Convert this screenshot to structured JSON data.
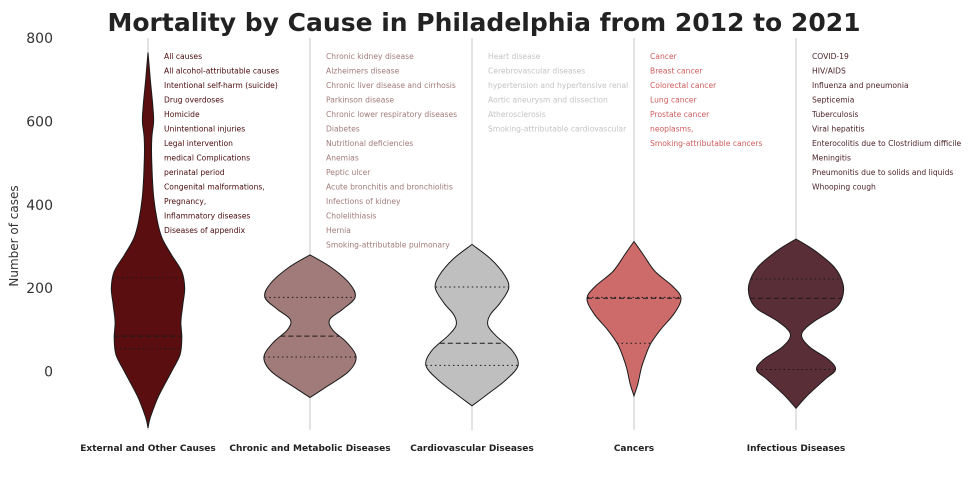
{
  "chart_data": {
    "type": "violin",
    "title": "Mortality by Cause in Philadelphia from 2012 to 2021",
    "xlabel": "",
    "ylabel": "Number of cases",
    "ylim": [
      -140,
      800
    ],
    "yticks": [
      0,
      200,
      400,
      600,
      800
    ],
    "grid": "vertical lines at each category",
    "categories": [
      {
        "name": "External and Other Causes",
        "color": "#5a0e10",
        "text_color": "#4a0a0c",
        "range": [
          -135,
          765
        ],
        "quartiles": {
          "q1": 55,
          "median": 85,
          "q3": 225
        },
        "causes": [
          "All causes",
          "All alcohol-attributable causes",
          "Intentional self-harm (suicide)",
          "Drug overdoses",
          "Homicide",
          "Unintentional injuries",
          "Legal intervention",
          "medical Complications",
          "perinatal period",
          "Congenital malformations,",
          "Pregnancy,",
          "Inflammatory diseases",
          "Diseases of appendix"
        ]
      },
      {
        "name": "Chronic and Metabolic Diseases",
        "color": "#a07b79",
        "text_color": "#a07b79",
        "range": [
          -62,
          280
        ],
        "quartiles": {
          "q1": 35,
          "median": 85,
          "q3": 178
        },
        "causes": [
          "Chronic kidney disease",
          "Alzheimers disease",
          "Chronic liver disease and cirrhosis",
          "Parkinson disease",
          "Chronic lower respiratory diseases",
          "Diabetes",
          "Nutritional deficiencies",
          "Anemias",
          "Peptic ulcer",
          "Acute bronchitis and bronchiolitis",
          "Infections of kidney",
          "Cholelithiasis",
          "Hernia",
          "Smoking-attributable pulmonary"
        ]
      },
      {
        "name": "Cardiovascular Diseases",
        "color": "#bfbfbf",
        "text_color": "#c4c4c4",
        "range": [
          -82,
          305
        ],
        "quartiles": {
          "q1": 15,
          "median": 68,
          "q3": 203
        },
        "causes": [
          "Heart disease",
          "Cerebrovascular diseases",
          "hypertension and hypertensive renal",
          "Aortic aneurysm and dissection",
          "Atherosclerosis",
          "Smoking-attributable cardiovascular"
        ]
      },
      {
        "name": "Cancers",
        "color": "#cd6b6a",
        "text_color": "#cd5c5c",
        "range": [
          -58,
          312
        ],
        "quartiles": {
          "q1": 68,
          "median": 176,
          "q3": 178
        },
        "causes": [
          "Cancer",
          "Breast cancer",
          "Colorectal cancer",
          "Lung cancer",
          "Prostate cancer",
          "neoplasms,",
          "Smoking-attributable cancers"
        ]
      },
      {
        "name": "Infectious Diseases",
        "color": "#5a2e36",
        "text_color": "#4a1f26",
        "range": [
          -88,
          318
        ],
        "quartiles": {
          "q1": 5,
          "median": 176,
          "q3": 222
        },
        "causes": [
          "COVID-19",
          "HIV/AIDS",
          "Influenza and pneumonia",
          "Septicemia",
          "Tuberculosis",
          "Viral hepatitis",
          "Enterocolitis due to Clostridium difficile",
          "Meningitis",
          "Pneumonitis due to solids and liquids",
          "Whooping cough"
        ]
      }
    ]
  }
}
